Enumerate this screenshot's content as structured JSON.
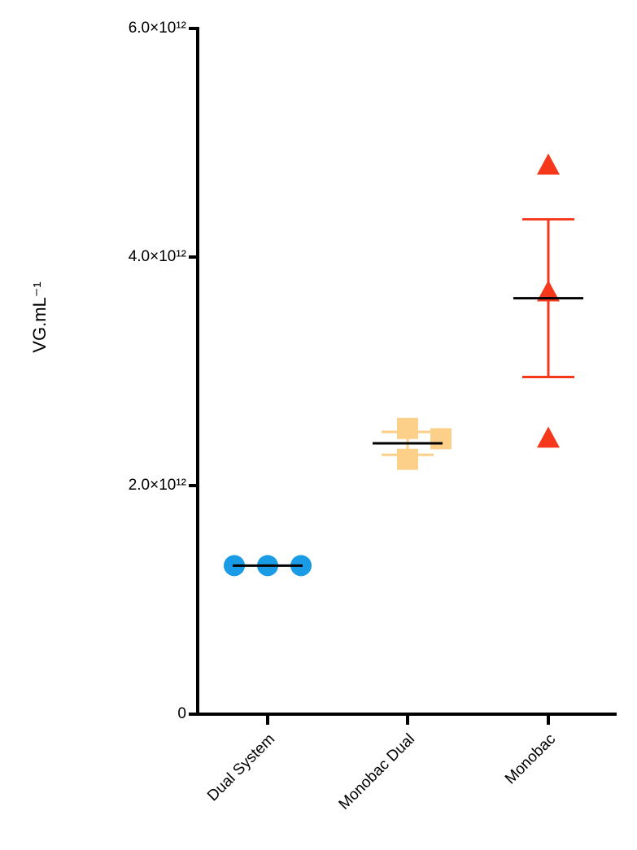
{
  "chart_data": {
    "type": "scatter",
    "y_label": "VG.mL⁻¹",
    "categories": [
      "Dual System",
      "Monobac Dual",
      "Monobac"
    ],
    "groups": [
      {
        "marker": "circle",
        "color": "#1a9be6",
        "values": [
          1300000000000.0,
          1300000000000.0,
          1300000000000.0
        ],
        "mean": 1300000000000.0
      },
      {
        "marker": "square",
        "color": "#fdd08a",
        "values": [
          2500000000000.0,
          2230000000000.0,
          2410000000000.0
        ],
        "mean": 2370000000000.0,
        "error": 100000000000.0
      },
      {
        "marker": "triangle",
        "color": "#f5371b",
        "values": [
          4800000000000.0,
          3690000000000.0,
          2410000000000.0
        ],
        "mean": 3640000000000.0,
        "error": 690000000000.0
      }
    ],
    "ylim": [
      0,
      6000000000000.0
    ],
    "yticks": [
      0,
      {
        "value": 2000000000000.0,
        "label": "2.0×10¹²"
      },
      {
        "value": 4000000000000.0,
        "label": "4.0×10¹²"
      },
      {
        "value": 6000000000000.0,
        "label": "6.0×10¹²"
      }
    ]
  }
}
